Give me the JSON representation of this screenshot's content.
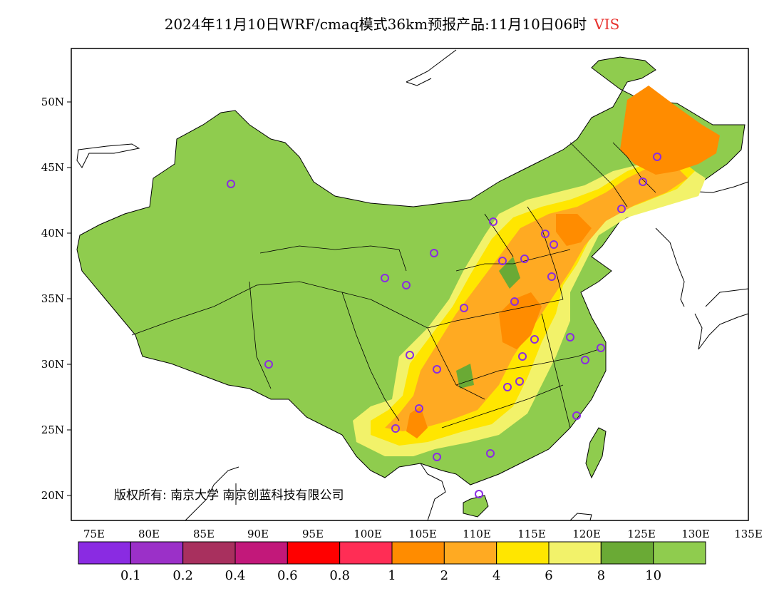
{
  "title": {
    "main": "2024年11月10日WRF/cmaq模式36km预报产品:11月10日06时",
    "variable": "VIS",
    "variable_color": "#e8322e"
  },
  "map": {
    "lat_labels": [
      "20N",
      "25N",
      "30N",
      "35N",
      "40N",
      "45N",
      "50N"
    ],
    "lon_labels": [
      "75E",
      "80E",
      "85E",
      "90E",
      "95E",
      "100E",
      "105E",
      "110E",
      "115E",
      "120E",
      "125E",
      "130E",
      "135E"
    ],
    "copyright": "版权所有: 南京大学  南京创蓝科技有限公司"
  },
  "colorbar": {
    "colors": [
      "#8a2be2",
      "#9b30c8",
      "#a8305e",
      "#c2187a",
      "#ff0000",
      "#ff2d55",
      "#ff8c00",
      "#ffaa22",
      "#ffe600",
      "#f2f26a",
      "#6aaa35",
      "#8fcc4e"
    ],
    "labels": [
      "0.1",
      "0.2",
      "0.4",
      "0.6",
      "0.8",
      "1",
      "2",
      "4",
      "6",
      "8",
      "10"
    ]
  }
}
